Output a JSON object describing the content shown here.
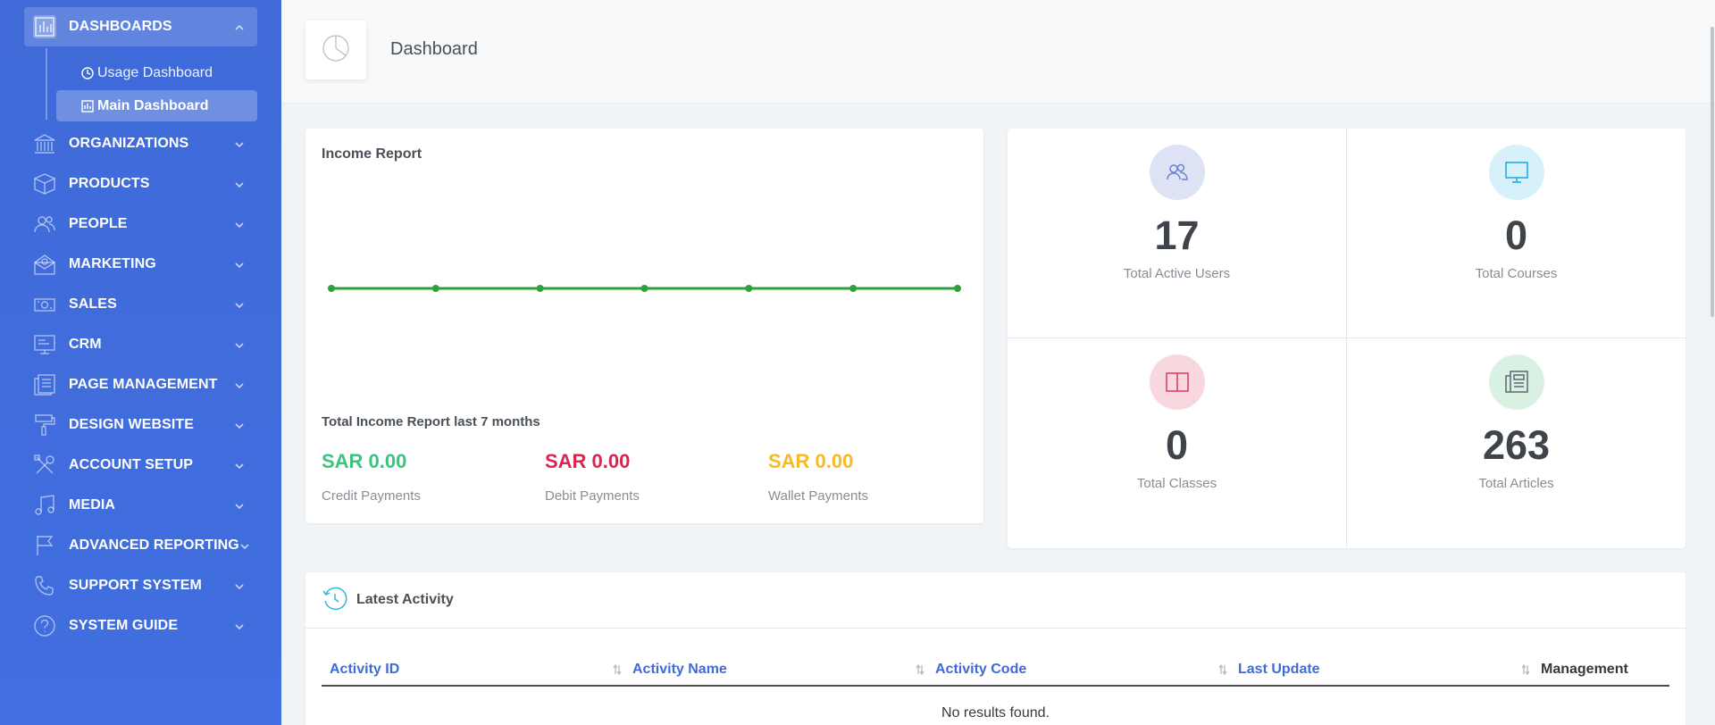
{
  "sidebar": {
    "dashboards": {
      "label": "DASHBOARDS",
      "sub_items": [
        {
          "label": "Usage Dashboard"
        },
        {
          "label": "Main Dashboard"
        }
      ]
    },
    "items": [
      {
        "label": "ORGANIZATIONS",
        "icon": "building-icon"
      },
      {
        "label": "PRODUCTS",
        "icon": "box-icon"
      },
      {
        "label": "PEOPLE",
        "icon": "users-icon"
      },
      {
        "label": "MARKETING",
        "icon": "mail-open-icon"
      },
      {
        "label": "SALES",
        "icon": "money-icon"
      },
      {
        "label": "CRM",
        "icon": "monitor-icon"
      },
      {
        "label": "PAGE MANAGEMENT",
        "icon": "pages-icon"
      },
      {
        "label": "DESIGN WEBSITE",
        "icon": "paint-roller-icon"
      },
      {
        "label": "ACCOUNT SETUP",
        "icon": "tools-icon"
      },
      {
        "label": "MEDIA",
        "icon": "music-icon"
      },
      {
        "label": "ADVANCED REPORTING",
        "icon": "flag-icon"
      },
      {
        "label": "SUPPORT SYSTEM",
        "icon": "phone-icon"
      },
      {
        "label": "SYSTEM GUIDE",
        "icon": "help-icon"
      }
    ]
  },
  "header": {
    "title": "Dashboard"
  },
  "income": {
    "title": "Income Report",
    "subtitle": "Total Income Report last 7 months",
    "payments": [
      {
        "value": "SAR 0.00",
        "label": "Credit Payments",
        "color": "#3ac47d"
      },
      {
        "value": "SAR 0.00",
        "label": "Debit Payments",
        "color": "#d92550"
      },
      {
        "value": "SAR 0.00",
        "label": "Wallet Payments",
        "color": "#f7b924"
      }
    ]
  },
  "chart_data": {
    "type": "line",
    "series": [
      {
        "values": [
          0,
          0,
          0,
          0,
          0,
          0,
          0
        ],
        "color": "#30a13a"
      }
    ]
  },
  "stats": [
    {
      "value": "17",
      "label": "Total Active Users",
      "icon": "users-icon",
      "bg": "#dde2f5",
      "stroke": "#6c84c9"
    },
    {
      "value": "0",
      "label": "Total Courses",
      "icon": "monitor-icon",
      "bg": "#d7f1fb",
      "stroke": "#19a7df"
    },
    {
      "value": "0",
      "label": "Total Classes",
      "icon": "book-icon",
      "bg": "#f9d7de",
      "stroke": "#d93a5a"
    },
    {
      "value": "263",
      "label": "Total Articles",
      "icon": "newspaper-icon",
      "bg": "#d9f1e3",
      "stroke": "#5c6670"
    }
  ],
  "activity": {
    "title": "Latest Activity",
    "columns": [
      "Activity ID",
      "Activity Name",
      "Activity Code",
      "Last Update",
      "Management"
    ],
    "empty_text": "No results found."
  }
}
